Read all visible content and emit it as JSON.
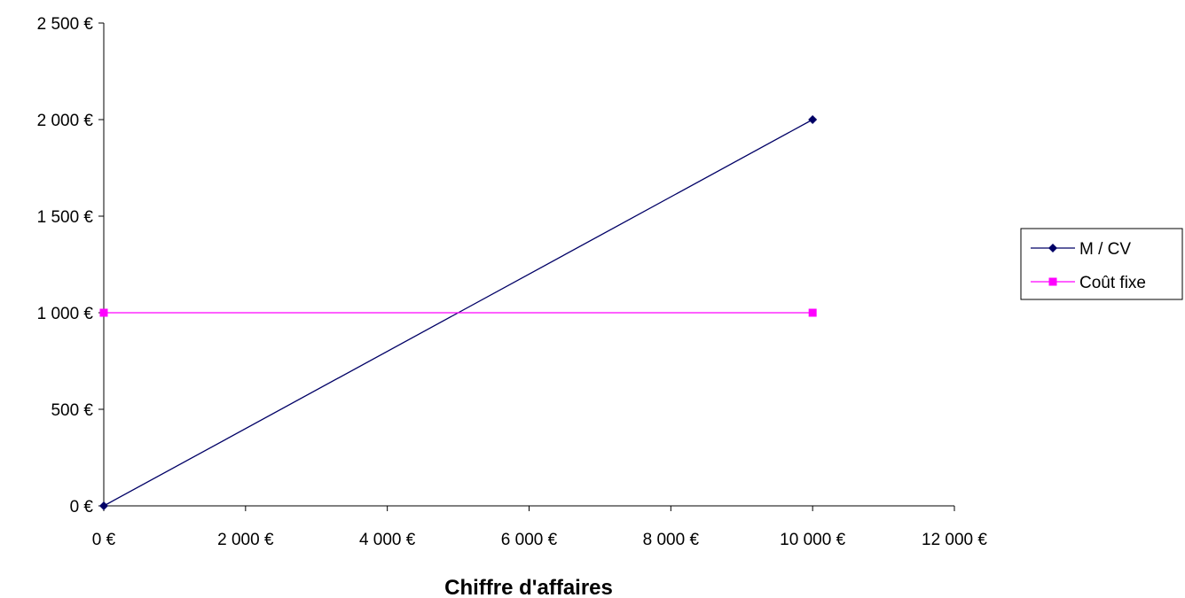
{
  "chart_data": {
    "type": "line",
    "title": "",
    "xlabel": "Chiffre d'affaires",
    "ylabel": "",
    "xlim": [
      0,
      12000
    ],
    "ylim": [
      0,
      2500
    ],
    "x_ticks": [
      0,
      2000,
      4000,
      6000,
      8000,
      10000,
      12000
    ],
    "y_ticks": [
      0,
      500,
      1000,
      1500,
      2000,
      2500
    ],
    "x_tick_labels": [
      "0 €",
      "2 000 €",
      "4 000 €",
      "6 000 €",
      "8 000 €",
      "10 000 €",
      "12 000 €"
    ],
    "y_tick_labels": [
      "0 €",
      "500 €",
      "1 000 €",
      "1 500 €",
      "2 000 €",
      "2 500 €"
    ],
    "grid": false,
    "legend_position": "right",
    "series": [
      {
        "name": "M / CV",
        "color": "#000066",
        "marker": "diamond",
        "points": [
          [
            0,
            0
          ],
          [
            10000,
            2000
          ]
        ]
      },
      {
        "name": "Coût fixe",
        "color": "#ff00ff",
        "marker": "square",
        "points": [
          [
            0,
            1000
          ],
          [
            10000,
            1000
          ]
        ]
      }
    ]
  }
}
